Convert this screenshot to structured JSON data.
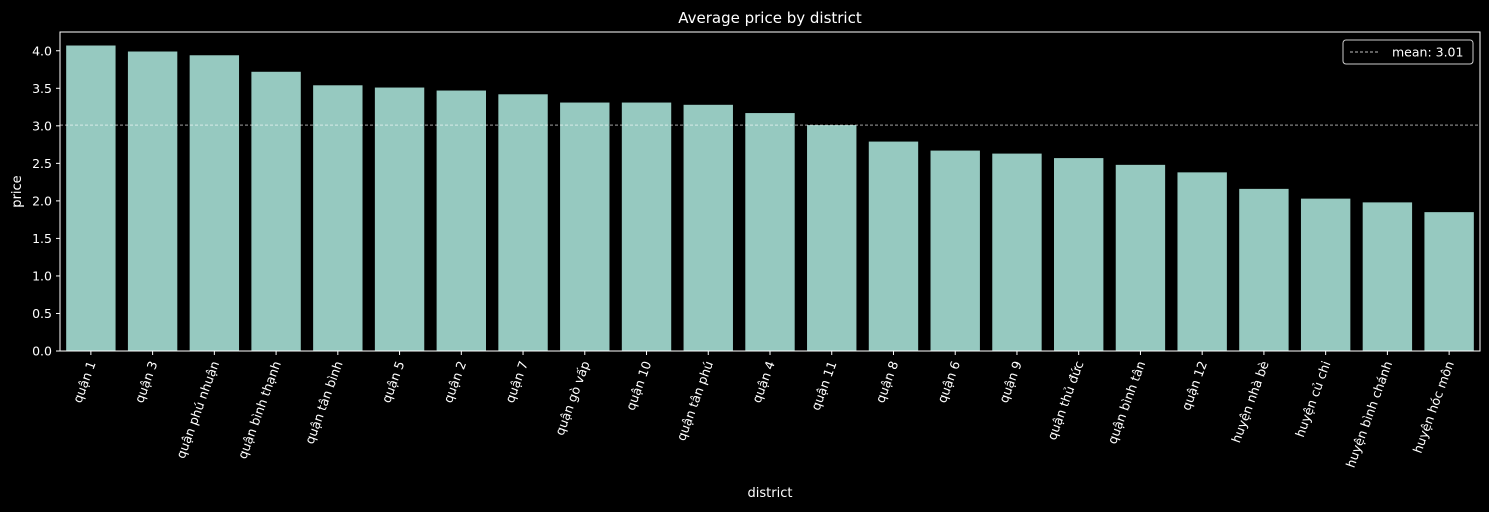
{
  "chart_data": {
    "type": "bar",
    "title": "Average price by district",
    "xlabel": "district",
    "ylabel": "price",
    "ylim": [
      0,
      4.25
    ],
    "yticks": [
      0.0,
      0.5,
      1.0,
      1.5,
      2.0,
      2.5,
      3.0,
      3.5,
      4.0
    ],
    "ytick_labels": [
      "0.0",
      "0.5",
      "1.0",
      "1.5",
      "2.0",
      "2.5",
      "3.0",
      "3.5",
      "4.0"
    ],
    "categories": [
      "quận 1",
      "quận 3",
      "quận phú nhuận",
      "quận bình thạnh",
      "quận tân bình",
      "quận 5",
      "quận 2",
      "quận 7",
      "quận gò vấp",
      "quận 10",
      "quận tân phú",
      "quận 4",
      "quận 11",
      "quận 8",
      "quận 6",
      "quận 9",
      "quận thủ đức",
      "quận bình tân",
      "quận 12",
      "huyện nhà bè",
      "huyện củ chi",
      "huyện bình chánh",
      "huyện hóc môn"
    ],
    "values": [
      4.07,
      3.99,
      3.94,
      3.72,
      3.54,
      3.51,
      3.47,
      3.42,
      3.31,
      3.31,
      3.28,
      3.17,
      3.01,
      2.79,
      2.67,
      2.63,
      2.57,
      2.48,
      2.38,
      2.16,
      2.03,
      1.98,
      1.85
    ],
    "mean_line": {
      "value": 3.01,
      "label": "mean: 3.01"
    },
    "legend_position": "top-right",
    "grid": false,
    "bar_color": "#96c9c0",
    "background": "#000000",
    "foreground": "#ffffff"
  }
}
